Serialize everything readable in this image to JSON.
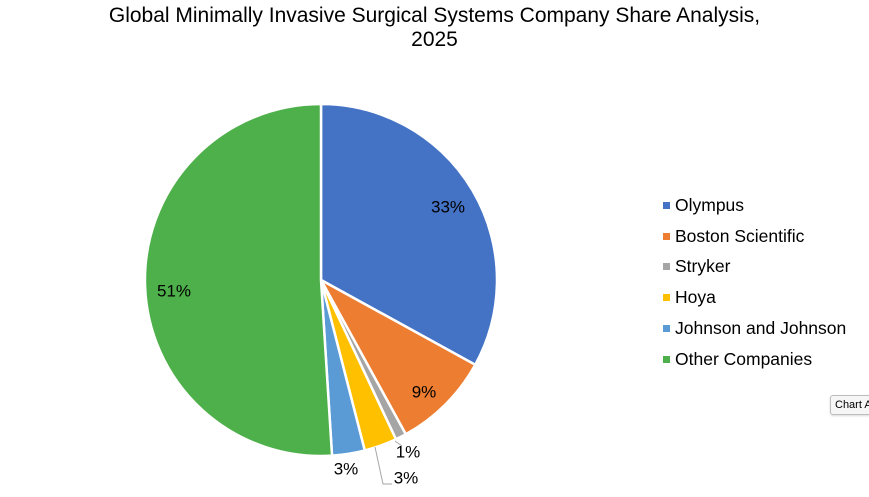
{
  "chart_data": {
    "type": "pie",
    "title_lines": [
      "Global Minimally Invasive Surgical Systems Company Share Analysis,",
      "2025"
    ],
    "slices": [
      {
        "name": "Olympus",
        "value": 33,
        "label": "33%",
        "color": "#4472C4"
      },
      {
        "name": "Boston Scientific",
        "value": 9,
        "label": "9%",
        "color": "#ED7D31"
      },
      {
        "name": "Stryker",
        "value": 1,
        "label": "1%",
        "color": "#A5A5A5"
      },
      {
        "name": "Hoya",
        "value": 3,
        "label": "3%",
        "color": "#FFC000"
      },
      {
        "name": "Johnson and Johnson",
        "value": 3,
        "label": "3%",
        "color": "#5B9BD5"
      },
      {
        "name": "Other Companies",
        "value": 51,
        "label": "51%",
        "color": "#4EB04A"
      }
    ],
    "legend_position": "right"
  },
  "tooltip": {
    "text": "Chart A"
  }
}
